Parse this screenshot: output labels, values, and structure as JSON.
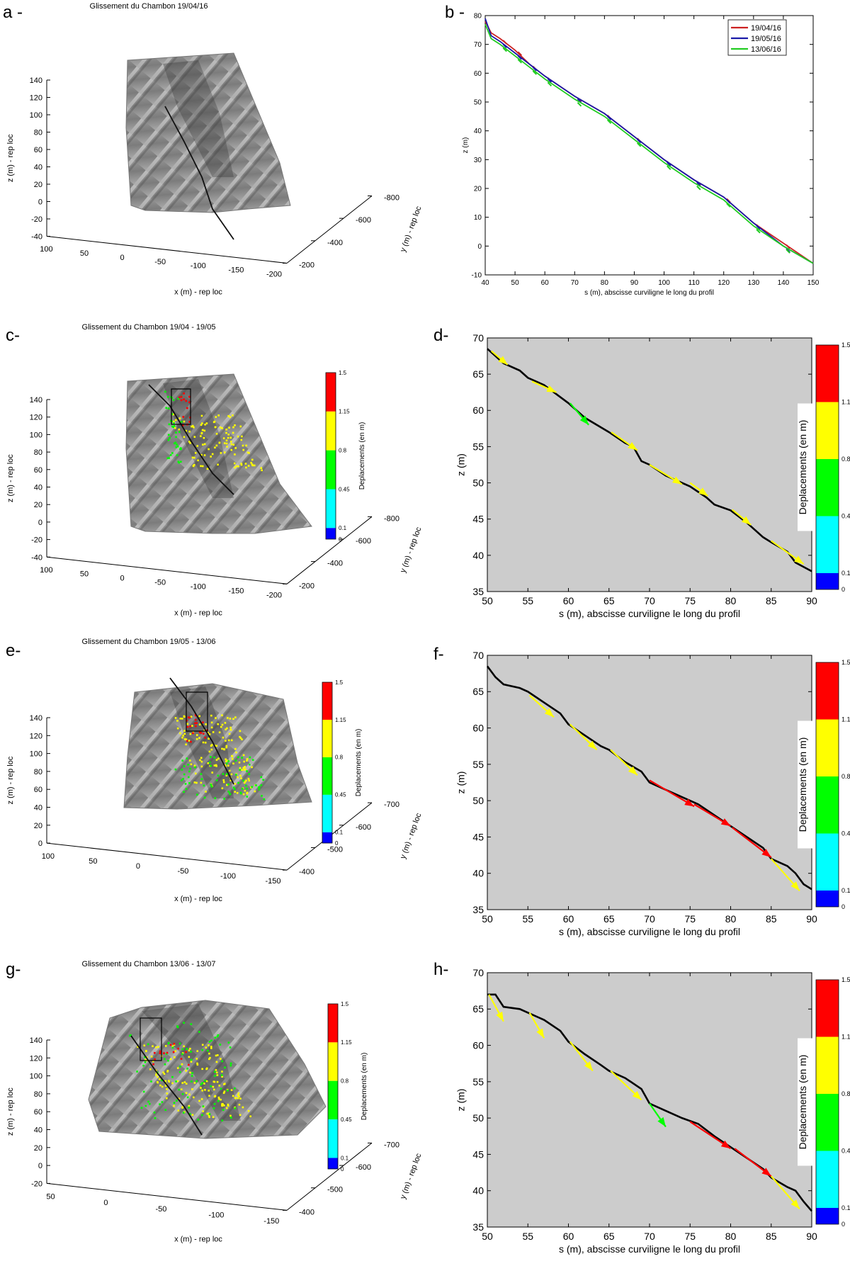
{
  "panel_labels": [
    "a -",
    "b -",
    "c-",
    "d-",
    "e-",
    "f-",
    "g-",
    "h-"
  ],
  "colorbar_ticks": [
    "1.5",
    "1.15",
    "0.8",
    "0.45",
    "0.1",
    "0"
  ],
  "colorbar_label": "Deplacements (en m)",
  "colors": {
    "red": "#ff0000",
    "yellow": "#ffff00",
    "green": "#00ff00",
    "cyan": "#00ffff",
    "blue": "#0000ff",
    "gray_bg": "#cccccc",
    "line_red": "#cc2222",
    "line_blue": "#1a1aa8",
    "line_green": "#22cc22"
  },
  "chart_data": [
    {
      "id": "a",
      "type": "scatter",
      "title": "Glissement du Chambon 19/04/16",
      "xlabel": "x (m) - rep loc",
      "ylabel": "y (m) - rep loc",
      "zlabel": "z (m) - rep loc",
      "z_ticks": [
        "140",
        "120",
        "100",
        "80",
        "60",
        "40",
        "20",
        "0",
        "-20",
        "-40"
      ],
      "x_ticks": [
        "100",
        "50",
        "0",
        "-50",
        "-100",
        "-150",
        "-200"
      ],
      "y_ticks": [
        "-800",
        "-600",
        "-400",
        "-200"
      ]
    },
    {
      "id": "b",
      "type": "line",
      "xlabel": "s (m), abscisse curviligne le long du profil",
      "ylabel": "z (m)",
      "xlim": [
        40,
        150
      ],
      "ylim": [
        -10,
        80
      ],
      "x_ticks": [
        "40",
        "50",
        "60",
        "70",
        "80",
        "90",
        "100",
        "110",
        "120",
        "130",
        "140",
        "150"
      ],
      "y_ticks": [
        "80",
        "70",
        "60",
        "50",
        "40",
        "30",
        "20",
        "10",
        "0",
        "-10"
      ],
      "legend_position": "top-right",
      "series": [
        {
          "name": "19/04/16",
          "color": "#cc2222",
          "x": [
            40,
            42,
            45,
            50,
            55,
            60,
            70,
            80,
            90,
            100,
            110,
            120,
            130,
            140,
            150
          ],
          "y": [
            78,
            74,
            72,
            68,
            63,
            59,
            52,
            46,
            38,
            30,
            23,
            17,
            8,
            1,
            -6
          ]
        },
        {
          "name": "19/05/16",
          "color": "#1a1aa8",
          "x": [
            40,
            42,
            45,
            50,
            55,
            60,
            70,
            80,
            90,
            100,
            110,
            120,
            130,
            140,
            150
          ],
          "y": [
            79,
            73,
            71,
            67,
            63,
            59,
            52,
            46,
            38,
            30,
            23,
            17,
            8,
            0,
            -6
          ]
        },
        {
          "name": "13/06/16",
          "color": "#22cc22",
          "x": [
            40,
            42,
            45,
            50,
            55,
            60,
            70,
            80,
            90,
            100,
            110,
            120,
            130,
            140,
            150
          ],
          "y": [
            77,
            72,
            70,
            66,
            62,
            58,
            51,
            45,
            37,
            29,
            22,
            16,
            7,
            0,
            -6
          ]
        }
      ]
    },
    {
      "id": "c",
      "type": "scatter",
      "title": "Glissement du Chambon 19/04 - 19/05",
      "xlabel": "x (m) - rep loc",
      "ylabel": "y (m) - rep loc",
      "zlabel": "z (m) - rep loc",
      "z_ticks": [
        "140",
        "120",
        "100",
        "80",
        "60",
        "40",
        "20",
        "0",
        "-20",
        "-40"
      ],
      "x_ticks": [
        "100",
        "50",
        "0",
        "-50",
        "-100",
        "-150",
        "-200"
      ],
      "y_ticks": [
        "-800",
        "-600",
        "-400",
        "-200"
      ]
    },
    {
      "id": "d",
      "type": "line",
      "xlabel": "s (m), abscisse curviligne le long du profil",
      "ylabel": "z (m)",
      "xlim": [
        50,
        90
      ],
      "ylim": [
        35,
        70
      ],
      "x_ticks": [
        "50",
        "55",
        "60",
        "65",
        "70",
        "75",
        "80",
        "85",
        "90"
      ],
      "y_ticks": [
        "70",
        "65",
        "60",
        "55",
        "50",
        "45",
        "40",
        "35"
      ],
      "profile": {
        "x": [
          50,
          51,
          52,
          54,
          55,
          57,
          60,
          62,
          65,
          67,
          68,
          69,
          70,
          72,
          74,
          75,
          77,
          78,
          80,
          82,
          84,
          85,
          87,
          88,
          90
        ],
        "y": [
          68.5,
          67.5,
          66.5,
          65.5,
          64.5,
          63.5,
          61,
          59,
          57,
          55.5,
          55,
          53,
          52.5,
          51,
          50,
          49.5,
          48,
          47,
          46.2,
          44.5,
          42.5,
          41.8,
          40.5,
          39,
          37.8
        ]
      },
      "arrows": [
        {
          "x0": 50.5,
          "y0": 68.2,
          "x1": 52.5,
          "y1": 66.3,
          "color": "#ffff00"
        },
        {
          "x0": 55.5,
          "y0": 64,
          "x1": 58.5,
          "y1": 62.5,
          "color": "#ffff00"
        },
        {
          "x0": 60.2,
          "y0": 61,
          "x1": 62.5,
          "y1": 58,
          "color": "#00ff00"
        },
        {
          "x0": 65.3,
          "y0": 57,
          "x1": 68.5,
          "y1": 54.5,
          "color": "#ffff00"
        },
        {
          "x0": 70,
          "y0": 52.5,
          "x1": 74,
          "y1": 49.8,
          "color": "#ffff00"
        },
        {
          "x0": 75,
          "y0": 50,
          "x1": 77.2,
          "y1": 48.2,
          "color": "#ffff00"
        },
        {
          "x0": 80.2,
          "y0": 46.3,
          "x1": 82.5,
          "y1": 44.2,
          "color": "#ffff00"
        },
        {
          "x0": 85,
          "y0": 42,
          "x1": 89,
          "y1": 38.8,
          "color": "#ffff00"
        }
      ]
    },
    {
      "id": "e",
      "type": "scatter",
      "title": "Glissement du Chambon 19/05 - 13/06",
      "xlabel": "x (m) - rep loc",
      "ylabel": "y (m) - rep loc",
      "zlabel": "z (m) - rep loc",
      "z_ticks": [
        "140",
        "120",
        "100",
        "80",
        "60",
        "40",
        "20",
        "0"
      ],
      "x_ticks": [
        "100",
        "50",
        "0",
        "-50",
        "-100",
        "-150"
      ],
      "y_ticks": [
        "-700",
        "-600",
        "-500",
        "-400"
      ]
    },
    {
      "id": "f",
      "type": "line",
      "xlabel": "s (m), abscisse curviligne le long du profil",
      "ylabel": "z (m)",
      "xlim": [
        50,
        90
      ],
      "ylim": [
        35,
        70
      ],
      "x_ticks": [
        "50",
        "55",
        "60",
        "65",
        "70",
        "75",
        "80",
        "85",
        "90"
      ],
      "y_ticks": [
        "70",
        "65",
        "60",
        "55",
        "50",
        "45",
        "40",
        "35"
      ],
      "profile": {
        "x": [
          50,
          51,
          52,
          54,
          55,
          57,
          59,
          60,
          62,
          64,
          65,
          67,
          69,
          70,
          72,
          74,
          76,
          78,
          80,
          82,
          84,
          85,
          87,
          88,
          89,
          90
        ],
        "y": [
          68.5,
          67,
          66,
          65.5,
          65,
          63.5,
          62,
          60.5,
          59,
          57.5,
          57,
          55.3,
          54,
          52.5,
          51.5,
          50.5,
          49.5,
          48,
          46.5,
          45,
          43.5,
          42,
          41,
          40,
          38.5,
          37.8
        ]
      },
      "arrows": [
        {
          "x0": 55.2,
          "y0": 64.5,
          "x1": 58.2,
          "y1": 61.5,
          "color": "#ffff00"
        },
        {
          "x0": 60.2,
          "y0": 60.5,
          "x1": 63.5,
          "y1": 57,
          "color": "#ffff00"
        },
        {
          "x0": 65.2,
          "y0": 57,
          "x1": 68.5,
          "y1": 53.5,
          "color": "#ffff00"
        },
        {
          "x0": 70,
          "y0": 52.8,
          "x1": 75.5,
          "y1": 49.2,
          "color": "#ff0000"
        },
        {
          "x0": 75.5,
          "y0": 49.5,
          "x1": 80,
          "y1": 46.5,
          "color": "#ff0000"
        },
        {
          "x0": 80.2,
          "y0": 46.3,
          "x1": 85,
          "y1": 42.2,
          "color": "#ff0000"
        },
        {
          "x0": 85,
          "y0": 42,
          "x1": 88.5,
          "y1": 37.6,
          "color": "#ffff00"
        }
      ]
    },
    {
      "id": "g",
      "type": "scatter",
      "title": "Glissement du Chambon 13/06 - 13/07",
      "xlabel": "x (m) - rep loc",
      "ylabel": "y (m) - rep loc",
      "zlabel": "z (m) - rep loc",
      "z_ticks": [
        "140",
        "120",
        "100",
        "80",
        "60",
        "40",
        "20",
        "0",
        "-20"
      ],
      "x_ticks": [
        "50",
        "0",
        "-50",
        "-100",
        "-150"
      ],
      "y_ticks": [
        "-700",
        "-600",
        "-500",
        "-400"
      ]
    },
    {
      "id": "h",
      "type": "line",
      "xlabel": "s (m), abscisse curviligne le long du profil",
      "ylabel": "z (m)",
      "xlim": [
        50,
        90
      ],
      "ylim": [
        35,
        70
      ],
      "x_ticks": [
        "50",
        "55",
        "60",
        "65",
        "70",
        "75",
        "80",
        "85",
        "90"
      ],
      "y_ticks": [
        "70",
        "65",
        "60",
        "55",
        "50",
        "45",
        "40",
        "35"
      ],
      "profile": {
        "x": [
          50,
          50.5,
          51,
          52,
          54,
          55,
          57,
          59,
          60,
          62,
          64,
          65,
          67,
          69,
          70,
          72,
          74,
          76,
          78,
          80,
          82,
          84,
          85,
          87,
          88,
          89,
          90
        ],
        "y": [
          67,
          67,
          67,
          65.3,
          65,
          64.5,
          63.5,
          62,
          60.5,
          58.8,
          57.3,
          56.5,
          55.5,
          54,
          52,
          51,
          50,
          49.2,
          47.5,
          46,
          44.5,
          43,
          41.8,
          40.5,
          40,
          38.5,
          37.2
        ]
      },
      "arrows": [
        {
          "x0": 50.2,
          "y0": 67,
          "x1": 52,
          "y1": 63.3,
          "color": "#ffff00"
        },
        {
          "x0": 55.2,
          "y0": 64.5,
          "x1": 57,
          "y1": 61,
          "color": "#ffff00"
        },
        {
          "x0": 60.2,
          "y0": 60.5,
          "x1": 63,
          "y1": 56.5,
          "color": "#ffff00"
        },
        {
          "x0": 65.2,
          "y0": 56.5,
          "x1": 69,
          "y1": 52.5,
          "color": "#ffff00"
        },
        {
          "x0": 70,
          "y0": 52,
          "x1": 72,
          "y1": 48.8,
          "color": "#00ff00"
        },
        {
          "x0": 75,
          "y0": 49.5,
          "x1": 80,
          "y1": 45.8,
          "color": "#ff0000"
        },
        {
          "x0": 80.5,
          "y0": 45.8,
          "x1": 85,
          "y1": 42,
          "color": "#ff0000"
        },
        {
          "x0": 85,
          "y0": 42,
          "x1": 88.5,
          "y1": 37.5,
          "color": "#ffff00"
        }
      ]
    }
  ]
}
